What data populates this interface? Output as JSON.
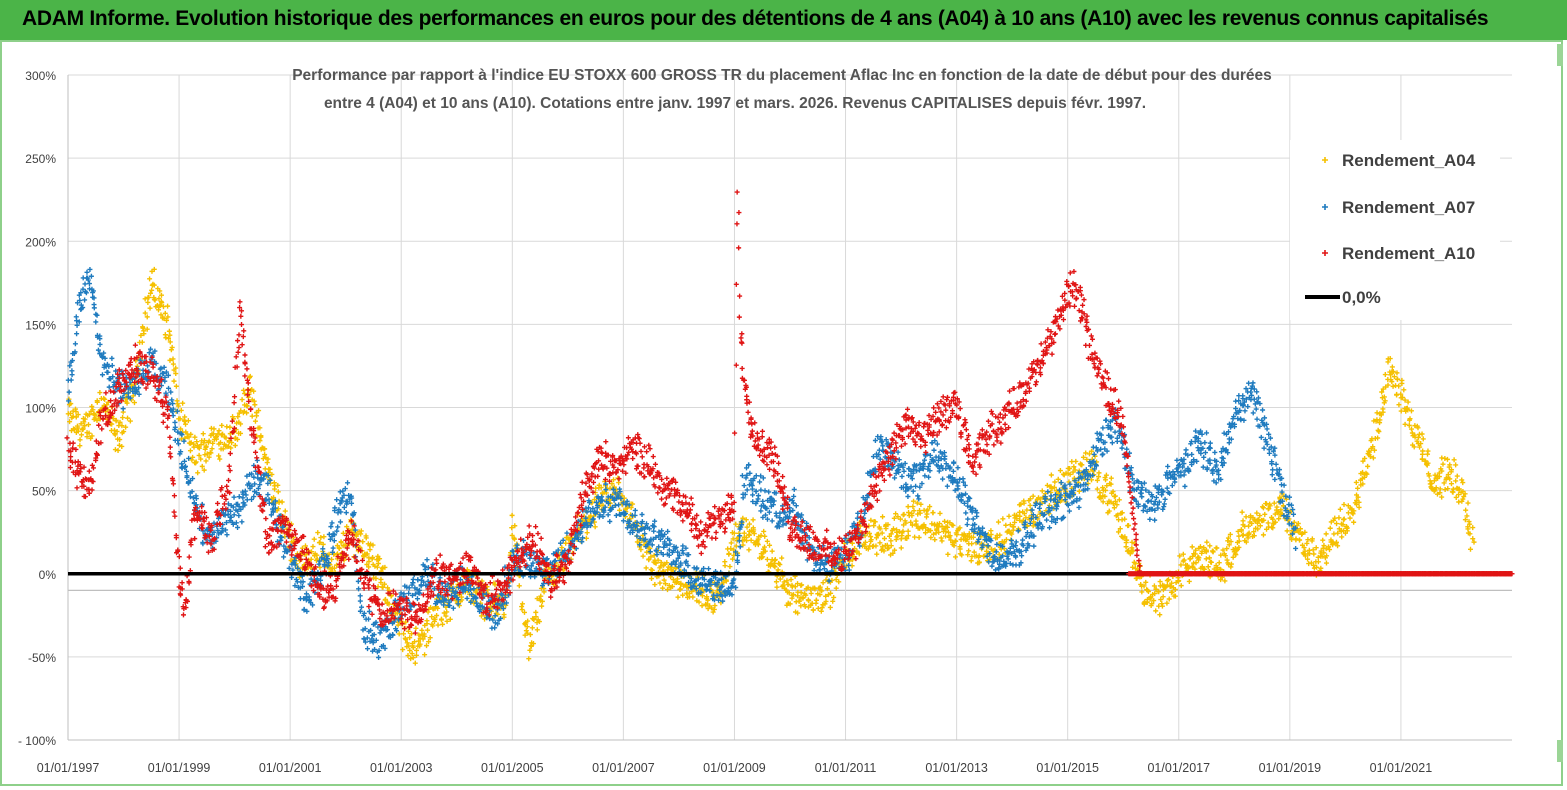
{
  "header": {
    "title": "ADAM Informe. Evolution historique des performances en euros pour des détentions de 4 ans (A04) à 10 ans (A10) avec les revenus connus capitalisés"
  },
  "colors": {
    "banner": "#4bb448",
    "a04": "#f5c000",
    "a07": "#1f7bbf",
    "a10": "#e01515",
    "zero": "#000000",
    "grid": "#d9d9d9"
  },
  "chart_data": {
    "type": "scatter",
    "title_lines": [
      "Performance par rapport à l'indice EU STOXX 600 GROSS TR  du placement Aflac Inc en fonction de la date de début pour des durées",
      "entre 4 (A04) et 10 ans (A10). Cotations entre janv. 1997 et mars. 2026. Revenus CAPITALISES depuis févr. 1997."
    ],
    "x_ticks": [
      "01/01/1997",
      "01/01/1999",
      "01/01/2001",
      "01/01/2003",
      "01/01/2005",
      "01/01/2007",
      "01/01/2009",
      "01/01/2011",
      "01/01/2013",
      "01/01/2015",
      "01/01/2017",
      "01/01/2019",
      "01/01/2021"
    ],
    "x_range": [
      1997.0,
      2023.0
    ],
    "y_ticks": [
      "300%",
      "250%",
      "200%",
      "150%",
      "100%",
      "50%",
      "0%",
      "-50%",
      "- 100%"
    ],
    "y_range": [
      -100,
      300
    ],
    "legend": [
      "Rendement_A04",
      "Rendement_A07",
      "Rendement_A10",
      "0,0%"
    ],
    "legend_position": "top-right",
    "series": [
      {
        "name": "Rendement_A04",
        "color": "#f5c000",
        "x": [
          1997.0,
          1997.3,
          1997.6,
          1997.9,
          1998.2,
          1998.5,
          1998.8,
          1999.0,
          1999.3,
          1999.6,
          2000.0,
          2000.3,
          2000.6,
          2000.9,
          2001.2,
          2001.5,
          2001.8,
          2002.1,
          2002.4,
          2002.8,
          2003.0,
          2003.3,
          2003.6,
          2003.9,
          2004.2,
          2004.5,
          2004.9,
          2005.0,
          2005.3,
          2005.6,
          2005.9,
          2006.2,
          2006.5,
          2006.9,
          2007.2,
          2007.5,
          2007.8,
          2008.1,
          2008.4,
          2008.7,
          2009.0,
          2009.3,
          2009.6,
          2010.0,
          2010.3,
          2010.7,
          2011.0,
          2011.4,
          2011.8,
          2012.2,
          2012.6,
          2013.0,
          2013.4,
          2013.8,
          2014.2,
          2014.6,
          2015.0,
          2015.4,
          2015.8,
          2016.2,
          2016.4,
          2016.7,
          2017.0,
          2017.4,
          2017.8,
          2018.1,
          2018.5,
          2018.9,
          2019.2,
          2019.5,
          2019.9,
          2020.2,
          2020.5,
          2020.8,
          2021.0,
          2021.3,
          2021.6,
          2021.9,
          2022.1,
          2022.3
        ],
        "y": [
          95,
          85,
          105,
          80,
          115,
          175,
          150,
          95,
          70,
          80,
          85,
          110,
          60,
          30,
          5,
          15,
          5,
          25,
          15,
          -15,
          -35,
          -45,
          -25,
          -15,
          -5,
          -15,
          -20,
          30,
          -45,
          -5,
          5,
          25,
          40,
          50,
          30,
          5,
          0,
          -5,
          -10,
          -15,
          20,
          25,
          10,
          -10,
          -15,
          -10,
          10,
          25,
          20,
          35,
          30,
          20,
          15,
          20,
          35,
          45,
          55,
          65,
          45,
          10,
          -10,
          -15,
          0,
          10,
          5,
          25,
          30,
          40,
          20,
          5,
          30,
          45,
          80,
          125,
          110,
          80,
          55,
          60,
          50,
          20
        ]
      },
      {
        "name": "Rendement_A07",
        "color": "#1f7bbf",
        "x": [
          1997.0,
          1997.2,
          1997.4,
          1997.6,
          1997.9,
          1998.2,
          1998.5,
          1998.8,
          1999.0,
          1999.2,
          1999.5,
          1999.8,
          2000.1,
          2000.4,
          2000.7,
          2001.0,
          2001.3,
          2001.6,
          2001.9,
          2002.1,
          2002.3,
          2002.6,
          2002.9,
          2003.2,
          2003.5,
          2003.8,
          2004.1,
          2004.4,
          2004.7,
          2005.0,
          2005.3,
          2005.6,
          2005.9,
          2006.2,
          2006.5,
          2006.9,
          2007.2,
          2007.5,
          2007.8,
          2008.1,
          2008.4,
          2008.7,
          2009.0,
          2009.2,
          2009.5,
          2009.8,
          2010.1,
          2010.4,
          2010.7,
          2011.0,
          2011.3,
          2011.6,
          2012.0,
          2012.3,
          2012.6,
          2012.9,
          2013.2,
          2013.5,
          2013.8,
          2014.1,
          2014.4,
          2014.7,
          2015.0,
          2015.3,
          2015.6,
          2015.9,
          2016.2,
          2016.5,
          2016.8,
          2017.1,
          2017.4,
          2017.7,
          2018.0,
          2018.3,
          2018.6,
          2018.9,
          2019.1
        ],
        "y": [
          110,
          160,
          180,
          130,
          110,
          115,
          125,
          110,
          80,
          55,
          20,
          30,
          40,
          60,
          40,
          10,
          -15,
          5,
          40,
          50,
          -30,
          -40,
          -25,
          -10,
          0,
          -15,
          -5,
          -15,
          -25,
          5,
          10,
          0,
          10,
          25,
          40,
          45,
          30,
          25,
          15,
          5,
          -5,
          -10,
          -5,
          60,
          45,
          35,
          40,
          10,
          5,
          10,
          30,
          80,
          60,
          55,
          75,
          60,
          40,
          20,
          5,
          15,
          30,
          40,
          45,
          55,
          80,
          90,
          50,
          40,
          55,
          65,
          80,
          60,
          95,
          110,
          80,
          45,
          25
        ]
      },
      {
        "name": "Rendement_A10",
        "color": "#e01515",
        "x": [
          1997.0,
          1997.2,
          1997.4,
          1997.6,
          1997.9,
          1998.2,
          1998.5,
          1998.8,
          1999.0,
          1999.1,
          1999.3,
          1999.6,
          1999.9,
          2000.1,
          2000.3,
          2000.6,
          2000.9,
          2001.2,
          2001.5,
          2001.8,
          2002.1,
          2002.4,
          2002.7,
          2003.0,
          2003.3,
          2003.6,
          2003.9,
          2004.2,
          2004.5,
          2004.8,
          2005.1,
          2005.4,
          2005.7,
          2006.0,
          2006.3,
          2006.6,
          2006.9,
          2007.2,
          2007.5,
          2007.8,
          2008.1,
          2008.4,
          2008.7,
          2009.0,
          2009.05,
          2009.1,
          2009.2,
          2009.4,
          2009.7,
          2010.0,
          2010.3,
          2010.6,
          2010.9,
          2011.2,
          2011.5,
          2011.8,
          2012.1,
          2012.4,
          2012.7,
          2013.0,
          2013.3,
          2013.6,
          2013.9,
          2014.2,
          2014.5,
          2014.8,
          2015.1,
          2015.4,
          2015.7,
          2016.0,
          2016.3,
          2016.6,
          2017.0,
          2017.5,
          2018.0,
          2018.5,
          2019.0,
          2019.5,
          2020.0,
          2020.5,
          2021.0,
          2021.5,
          2022.0,
          2022.5,
          2023.0
        ],
        "y": [
          75,
          60,
          50,
          90,
          110,
          125,
          120,
          95,
          0,
          -20,
          40,
          20,
          60,
          160,
          90,
          20,
          30,
          15,
          -10,
          -10,
          25,
          -10,
          -25,
          -20,
          -30,
          0,
          -5,
          5,
          -15,
          -10,
          10,
          20,
          -5,
          10,
          50,
          70,
          65,
          75,
          65,
          50,
          40,
          25,
          30,
          40,
          240,
          150,
          110,
          80,
          70,
          30,
          20,
          15,
          10,
          20,
          50,
          70,
          90,
          80,
          95,
          100,
          65,
          85,
          95,
          110,
          125,
          150,
          175,
          140,
          110,
          90,
          0,
          0,
          0,
          0,
          0,
          0,
          0,
          0,
          0,
          0,
          0,
          0,
          0,
          0,
          0
        ]
      }
    ],
    "reference_line": {
      "name": "0,0%",
      "y": 0
    },
    "secondary_gridline": -10
  }
}
